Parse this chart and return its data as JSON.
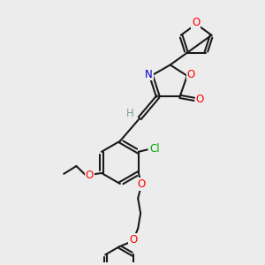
{
  "bg_color": "#ececec",
  "bond_color": "#1a1a1a",
  "oxygen_color": "#ff0000",
  "nitrogen_color": "#0000cc",
  "chlorine_color": "#00aa00",
  "hydrogen_color": "#7a9a9a",
  "line_width": 1.5,
  "figsize": [
    3.0,
    3.0
  ],
  "dpi": 100,
  "xlim": [
    0,
    10
  ],
  "ylim": [
    0,
    10
  ]
}
